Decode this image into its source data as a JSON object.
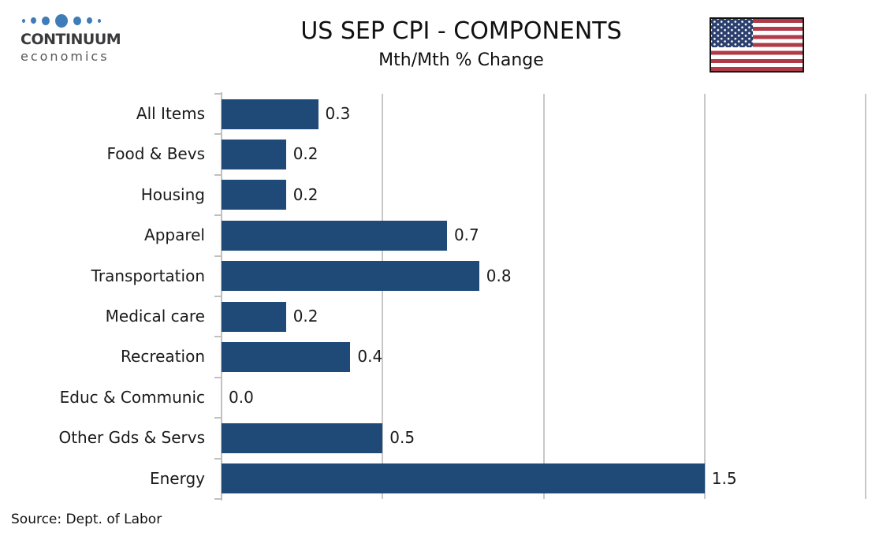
{
  "header": {
    "logo_line1": "CONTINUUM",
    "logo_line2": "economics",
    "logo_dot_color": "#3F7CB8"
  },
  "chart_data": {
    "type": "bar",
    "orientation": "horizontal",
    "title": "US SEP CPI - COMPONENTS",
    "subtitle": "Mth/Mth % Change",
    "categories": [
      "All Items",
      "Food & Bevs",
      "Housing",
      "Apparel",
      "Transportation",
      "Medical care",
      "Recreation",
      "Educ & Communic",
      "Other Gds & Servs",
      "Energy"
    ],
    "values": [
      0.3,
      0.2,
      0.2,
      0.7,
      0.8,
      0.2,
      0.4,
      0.0,
      0.5,
      1.5
    ],
    "value_labels": [
      "0.3",
      "0.2",
      "0.2",
      "0.7",
      "0.8",
      "0.2",
      "0.4",
      "0.0",
      "0.5",
      "1.5"
    ],
    "xlabel": "",
    "ylabel": "",
    "xlim": [
      0,
      2.0
    ],
    "gridlines": [
      0.5,
      1.0,
      1.5,
      2.0
    ],
    "grid": true,
    "legend": "none",
    "bar_color": "#1F4A78",
    "axis_color": "#C0C0C0",
    "gridline_color": "#C8C8C8"
  },
  "footer": {
    "source": "Source: Dept. of Labor"
  }
}
